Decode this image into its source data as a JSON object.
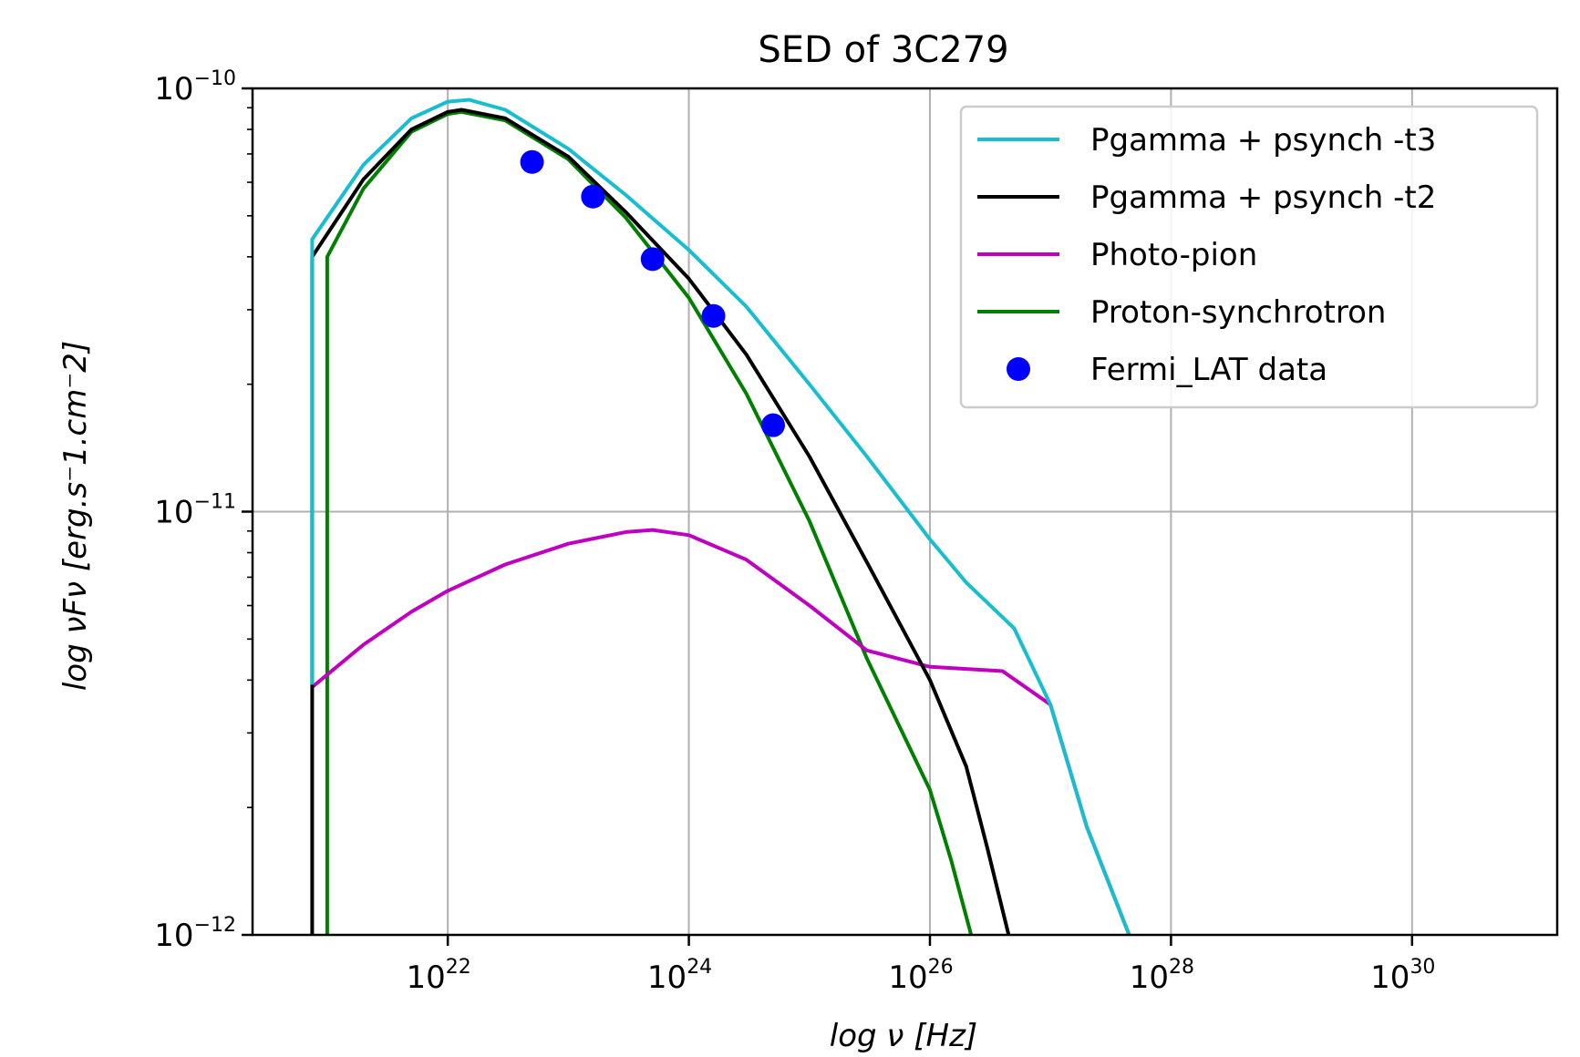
{
  "chart_data": {
    "type": "line",
    "title": "SED of 3C279",
    "xlabel": "log ν [Hz]",
    "ylabel": "log νFν [erg.s⁻1.cm⁻2]",
    "xscale": "log",
    "yscale": "log",
    "xlim": [
      2.4e+20,
      1.6e+31
    ],
    "ylim": [
      1e-12,
      1e-10
    ],
    "grid": true,
    "legend_position": "top-right",
    "x_ticks": [
      {
        "base": "10",
        "exp": "22",
        "value": 1e+22
      },
      {
        "base": "10",
        "exp": "24",
        "value": 1e+24
      },
      {
        "base": "10",
        "exp": "26",
        "value": 1e+26
      },
      {
        "base": "10",
        "exp": "28",
        "value": 1e+28
      },
      {
        "base": "10",
        "exp": "30",
        "value": 1e+30
      }
    ],
    "y_ticks": [
      {
        "base": "10",
        "exp": "−10",
        "value": 1e-10
      },
      {
        "base": "10",
        "exp": "−11",
        "value": 1e-11
      },
      {
        "base": "10",
        "exp": "−12",
        "value": 1e-12
      }
    ],
    "series": [
      {
        "name": "Pgamma + psynch -t3",
        "color": "#17becf",
        "style": "line",
        "x": [
          7.5e+20,
          7.5e+20,
          2e+21,
          5e+21,
          1e+22,
          1.5e+22,
          3e+22,
          1e+23,
          3e+23,
          1e+24,
          3e+24,
          1e+25,
          3e+25,
          1e+26,
          2e+26,
          5e+26,
          1e+27,
          2e+27,
          4.5e+27
        ],
        "y": [
          3.9e-12,
          4.4e-11,
          6.6e-11,
          8.5e-11,
          9.3e-11,
          9.4e-11,
          8.9e-11,
          7.2e-11,
          5.6e-11,
          4.15e-11,
          3.05e-11,
          2e-11,
          1.35e-11,
          8.6e-12,
          6.8e-12,
          5.3e-12,
          3.5e-12,
          1.8e-12,
          1e-12
        ]
      },
      {
        "name": "Pgamma + psynch -t2",
        "color": "#000000",
        "style": "line",
        "x": [
          7.5e+20,
          7.5e+20,
          2e+21,
          5e+21,
          1e+22,
          1.3e+22,
          3e+22,
          1e+23,
          3e+23,
          1e+24,
          3e+24,
          1e+25,
          3e+25,
          1e+26,
          2e+26,
          3e+26,
          4.5e+26
        ],
        "y": [
          1e-12,
          4e-11,
          6.1e-11,
          8e-11,
          8.8e-11,
          8.9e-11,
          8.5e-11,
          6.9e-11,
          5.1e-11,
          3.55e-11,
          2.35e-11,
          1.35e-11,
          7.6e-12,
          4e-12,
          2.5e-12,
          1.6e-12,
          1e-12
        ]
      },
      {
        "name": "Photo-pion",
        "color": "#c000c0",
        "style": "line",
        "x": [
          7.5e+20,
          2e+21,
          5e+21,
          1e+22,
          3e+22,
          1e+23,
          3e+23,
          5e+23,
          1e+24,
          3e+24,
          1e+25,
          3e+25,
          1e+26,
          2e+26,
          4e+26,
          1e+27,
          2e+27,
          4.5e+27
        ],
        "y": [
          3.85e-12,
          4.85e-12,
          5.8e-12,
          6.5e-12,
          7.5e-12,
          8.4e-12,
          8.95e-12,
          9.05e-12,
          8.8e-12,
          7.7e-12,
          6e-12,
          4.7e-12,
          4.3e-12,
          4.25e-12,
          4.2e-12,
          3.5e-12,
          1.8e-12,
          1e-12
        ]
      },
      {
        "name": "Proton-synchrotron",
        "color": "#008000",
        "style": "line",
        "x": [
          1e+21,
          1e+21,
          2e+21,
          5e+21,
          1e+22,
          1.3e+22,
          3e+22,
          1e+23,
          3e+23,
          1e+24,
          3e+24,
          1e+25,
          3e+25,
          1e+26,
          1.5e+26,
          2.2e+26
        ],
        "y": [
          1e-12,
          4e-11,
          5.8e-11,
          7.9e-11,
          8.7e-11,
          8.8e-11,
          8.4e-11,
          6.8e-11,
          4.95e-11,
          3.2e-11,
          1.9e-11,
          9.5e-12,
          4.5e-12,
          2.2e-12,
          1.5e-12,
          1e-12
        ]
      },
      {
        "name": "Fermi_LAT data",
        "color": "#0000ff",
        "style": "markers",
        "x": [
          5e+22,
          1.6e+23,
          5e+23,
          1.6e+24,
          5e+24
        ],
        "y": [
          6.7e-11,
          5.55e-11,
          3.95e-11,
          2.9e-11,
          1.6e-11
        ]
      }
    ]
  }
}
